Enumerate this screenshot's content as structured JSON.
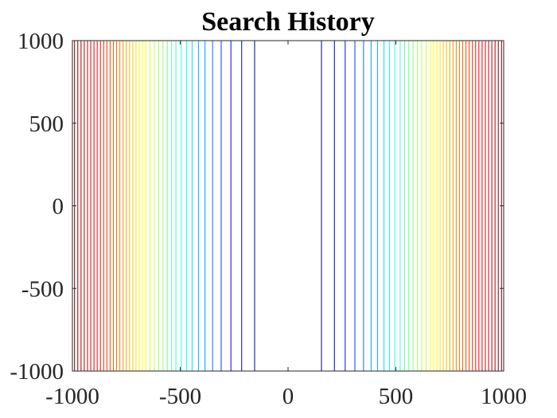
{
  "chart_data": {
    "type": "contour",
    "title": "Search History",
    "xlabel": "",
    "ylabel": "",
    "xlim": [
      -1000,
      1000
    ],
    "ylim": [
      -1000,
      1000
    ],
    "xticks": [
      -1000,
      -500,
      0,
      500,
      1000
    ],
    "xtick_labels": [
      "-1000",
      "-500",
      "0",
      "500",
      "1000"
    ],
    "yticks": [
      -1000,
      -500,
      0,
      500,
      1000
    ],
    "ytick_labels": [
      "-1000",
      "-500",
      "0",
      "500",
      "1000"
    ],
    "grid": false,
    "colormap": "jet",
    "contour_x_positions": [
      -990,
      -975,
      -960,
      -945,
      -930,
      -915,
      -900,
      -885,
      -870,
      -855,
      -840,
      -825,
      -810,
      -795,
      -780,
      -765,
      -750,
      -735,
      -720,
      -705,
      -690,
      -675,
      -660,
      -640,
      -620,
      -600,
      -580,
      -560,
      -540,
      -520,
      -495,
      -470,
      -445,
      -415,
      -385,
      -350,
      -310,
      -265,
      -215,
      -155,
      155,
      215,
      265,
      310,
      350,
      385,
      415,
      445,
      470,
      495,
      520,
      540,
      560,
      580,
      600,
      620,
      640,
      660,
      675,
      690,
      705,
      720,
      735,
      750,
      765,
      780,
      795,
      810,
      825,
      840,
      855,
      870,
      885,
      900,
      915,
      930,
      945,
      960,
      975,
      990
    ]
  }
}
